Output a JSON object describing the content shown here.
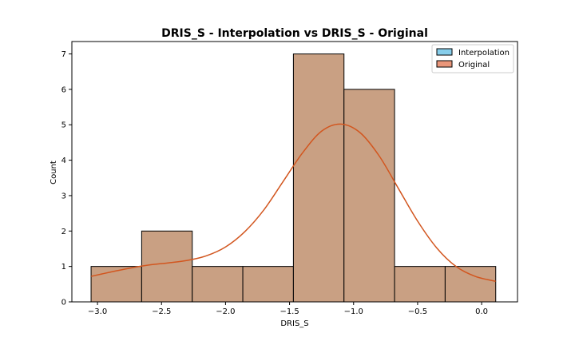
{
  "chart_data": {
    "type": "bar",
    "title": "DRIS_S - Interpolation vs DRIS_S - Original",
    "xlabel": "DRIS_S",
    "ylabel": "Count",
    "xlim": [
      -3.2,
      0.28
    ],
    "ylim": [
      0,
      7.35
    ],
    "xticks": [
      -3.0,
      -2.5,
      -2.0,
      -1.5,
      -1.0,
      -0.5,
      0.0
    ],
    "xtick_labels": [
      "−3.0",
      "−2.5",
      "−2.0",
      "−1.5",
      "−1.0",
      "−0.5",
      "0.0"
    ],
    "yticks": [
      0,
      1,
      2,
      3,
      4,
      5,
      6,
      7
    ],
    "grid": false,
    "legend_position": "upper right",
    "bins": [
      {
        "x0": -3.05,
        "x1": -2.655,
        "count": 1
      },
      {
        "x0": -2.655,
        "x1": -2.26,
        "count": 2
      },
      {
        "x0": -2.26,
        "x1": -1.865,
        "count": 1
      },
      {
        "x0": -1.865,
        "x1": -1.47,
        "count": 1
      },
      {
        "x0": -1.47,
        "x1": -1.075,
        "count": 7
      },
      {
        "x0": -1.075,
        "x1": -0.68,
        "count": 6
      },
      {
        "x0": -0.68,
        "x1": -0.285,
        "count": 1
      },
      {
        "x0": -0.285,
        "x1": 0.11,
        "count": 1
      }
    ],
    "series": [
      {
        "name": "Interpolation",
        "color": "#87ceeb",
        "values": [
          1,
          2,
          1,
          1,
          7,
          6,
          1,
          1
        ]
      },
      {
        "name": "Original",
        "color": "#e9967a",
        "values": [
          1,
          2,
          1,
          1,
          7,
          6,
          1,
          1
        ]
      }
    ],
    "overlap_color": "#c9a083",
    "kde": {
      "color": "#d2561f",
      "x": [
        -3.05,
        -2.9,
        -2.75,
        -2.6,
        -2.45,
        -2.3,
        -2.15,
        -2.0,
        -1.85,
        -1.7,
        -1.55,
        -1.4,
        -1.25,
        -1.1,
        -0.95,
        -0.8,
        -0.65,
        -0.5,
        -0.35,
        -0.2,
        -0.05,
        0.11
      ],
      "y": [
        0.72,
        0.84,
        0.95,
        1.04,
        1.1,
        1.17,
        1.3,
        1.55,
        1.98,
        2.6,
        3.4,
        4.2,
        4.82,
        5.02,
        4.78,
        4.12,
        3.2,
        2.28,
        1.52,
        1.0,
        0.72,
        0.58
      ]
    }
  }
}
